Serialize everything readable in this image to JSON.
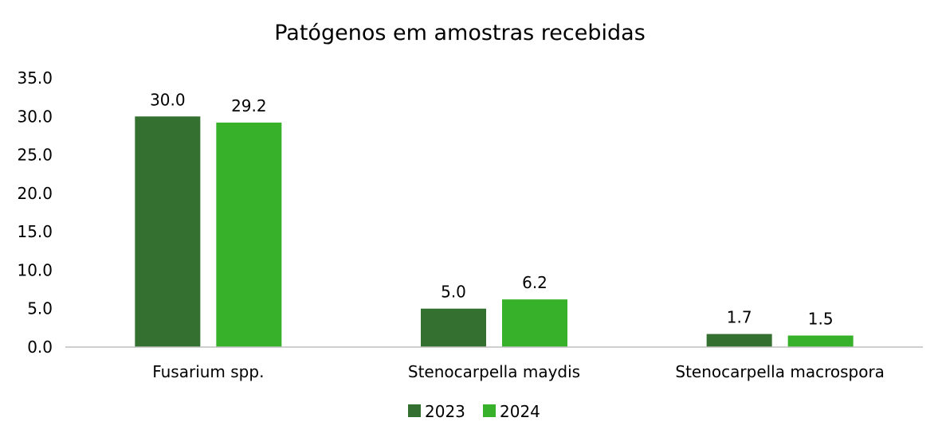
{
  "chart_data": {
    "type": "bar",
    "title": "Patógenos em amostras recebidas",
    "xlabel": "",
    "ylabel": "",
    "categories": [
      "Fusarium spp.",
      "Stenocarpella maydis",
      "Stenocarpella macrospora"
    ],
    "series": [
      {
        "name": "2023",
        "values": [
          30.0,
          5.0,
          1.7
        ],
        "labels": [
          "30.0",
          "5.0",
          "1.7"
        ],
        "color": "#347130"
      },
      {
        "name": "2024",
        "values": [
          29.2,
          6.2,
          1.5
        ],
        "labels": [
          "29.2",
          "6.2",
          "1.5"
        ],
        "color": "#37B12A"
      }
    ],
    "ylim": [
      0,
      35
    ],
    "yticks": [
      "0.0",
      "5.0",
      "10.0",
      "15.0",
      "20.0",
      "25.0",
      "30.0",
      "35.0"
    ],
    "grid": false,
    "legend": "bottom"
  }
}
